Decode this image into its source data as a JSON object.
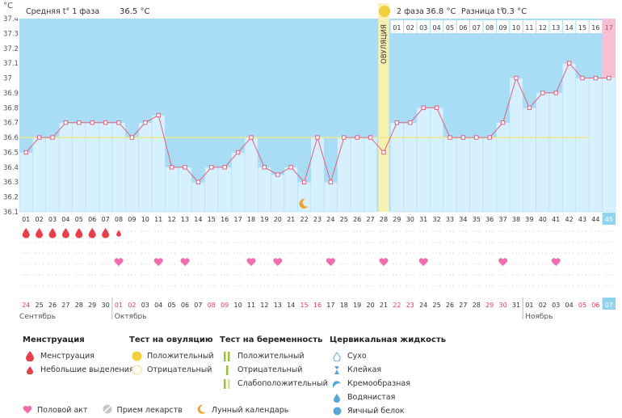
{
  "chart_data": {
    "type": "line",
    "y_unit": "°C",
    "ylim": [
      36.1,
      37.4
    ],
    "y_ticks": [
      "36.1",
      "36.2",
      "36.3",
      "36.4",
      "36.5",
      "36.6",
      "36.7",
      "36.8",
      "36.9",
      "37",
      "37.1",
      "37.2",
      "37.3",
      "37.4"
    ],
    "cycle_days": [
      "01",
      "02",
      "03",
      "04",
      "05",
      "06",
      "07",
      "08",
      "09",
      "10",
      "11",
      "12",
      "13",
      "14",
      "15",
      "16",
      "17",
      "18",
      "19",
      "20",
      "21",
      "22",
      "23",
      "24",
      "25",
      "26",
      "27",
      "28",
      "29",
      "30",
      "31",
      "32",
      "33",
      "34",
      "35",
      "36",
      "37",
      "38",
      "39",
      "40",
      "41",
      "42",
      "43",
      "44",
      "45"
    ],
    "temperatures": [
      36.5,
      36.6,
      36.6,
      36.7,
      36.7,
      36.7,
      36.7,
      36.7,
      36.6,
      36.7,
      36.75,
      36.4,
      36.4,
      36.3,
      36.4,
      36.4,
      36.5,
      36.6,
      36.4,
      36.35,
      36.4,
      36.3,
      36.6,
      36.3,
      36.6,
      36.6,
      36.6,
      36.5,
      36.7,
      36.7,
      36.8,
      36.8,
      36.6,
      36.6,
      36.6,
      36.6,
      36.7,
      37.0,
      36.8,
      36.9,
      36.9,
      37.1,
      37.0,
      37.0,
      37.0
    ],
    "cover_line": 36.6,
    "ovulation_day": 28,
    "second_phase_days": [
      "01",
      "02",
      "03",
      "04",
      "05",
      "06",
      "07",
      "08",
      "09",
      "10",
      "11",
      "12",
      "13",
      "14",
      "15",
      "16",
      "17"
    ],
    "calendar_dates": [
      "24",
      "25",
      "26",
      "27",
      "28",
      "29",
      "30",
      "01",
      "02",
      "03",
      "04",
      "05",
      "06",
      "07",
      "08",
      "09",
      "10",
      "11",
      "12",
      "13",
      "14",
      "15",
      "16",
      "17",
      "18",
      "19",
      "20",
      "21",
      "22",
      "23",
      "24",
      "25",
      "26",
      "27",
      "28",
      "29",
      "30",
      "31",
      "01",
      "02",
      "03",
      "04",
      "05",
      "06",
      "07"
    ],
    "weekend_date_indices": [
      0,
      7,
      8,
      14,
      15,
      21,
      22,
      28,
      29,
      35,
      36,
      42,
      43
    ],
    "months": [
      {
        "label": "Сентябрь",
        "start": 0
      },
      {
        "label": "Октябрь",
        "start": 7
      },
      {
        "label": "Ноябрь",
        "start": 38
      }
    ],
    "menstruation_heavy_days": [
      1,
      2,
      3,
      4,
      5,
      6,
      7
    ],
    "menstruation_light_days": [
      8
    ],
    "intercourse_days": [
      8,
      11,
      13,
      18,
      20,
      24,
      28,
      31,
      37,
      41
    ],
    "moon_day": 22,
    "highlight_day": 45
  },
  "header": {
    "phase1_label": "Средняя t° 1 фаза",
    "phase1_value": "36.5 °C",
    "phase2_label": "2 фаза",
    "phase2_value": "36.8 °C",
    "diff_label": "Разница t°",
    "diff_value": "0.3 °C",
    "ovulation_label": "ОВУЛЯЦИЯ"
  },
  "legend": {
    "menstruation": {
      "title": "Менструация",
      "items": [
        "Менструация",
        "Небольшие выделения"
      ]
    },
    "ovulation_test": {
      "title": "Тест на овуляцию",
      "items": [
        "Положительный",
        "Отрицательный"
      ]
    },
    "pregnancy_test": {
      "title": "Тест на беременность",
      "items": [
        "Положительный",
        "Отрицательный",
        "Слабоположительный"
      ]
    },
    "cervical": {
      "title": "Цервикальная жидкость",
      "items": [
        "Сухо",
        "Клейкая",
        "Кремообразная",
        "Водянистая",
        "Яичный белок"
      ]
    },
    "bottom": [
      "Половой акт",
      "Прием лекарств",
      "Лунный календарь"
    ]
  },
  "colors": {
    "sky": "#a9dcf5",
    "bar": "#d6f0fd",
    "line": "#e0607e",
    "ovulation": "#f8f0b0",
    "highlight": "#f7bfd3",
    "heart": "#f06bb0",
    "drop": "#e8404b",
    "cover": "#eee68c"
  }
}
